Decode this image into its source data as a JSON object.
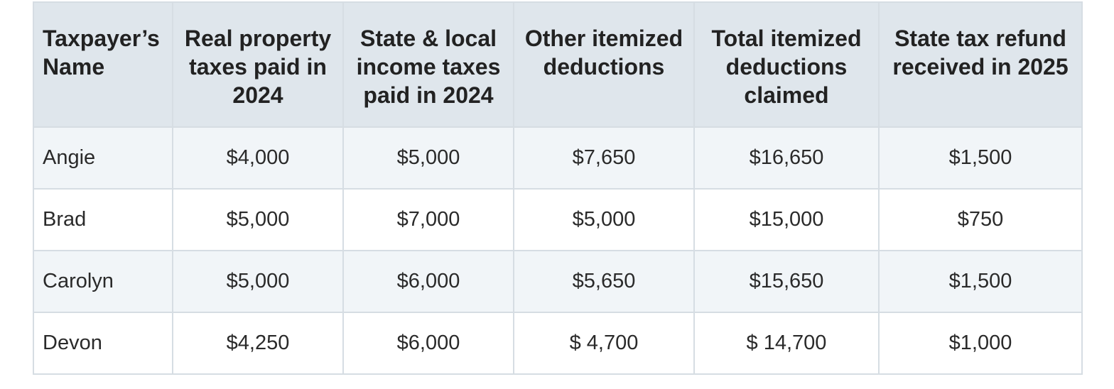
{
  "table": {
    "headers": [
      "Taxpayer’s Name",
      "Real property taxes paid in 2024",
      "State & local income taxes paid in 2024",
      "Other itemized deductions",
      "Total itemized deductions claimed",
      "State tax refund received in 2025"
    ],
    "rows": [
      [
        "Angie",
        "$4,000",
        "$5,000",
        "$7,650",
        "$16,650",
        "$1,500"
      ],
      [
        "Brad",
        "$5,000",
        "$7,000",
        "$5,000",
        "$15,000",
        "$750"
      ],
      [
        "Carolyn",
        "$5,000",
        "$6,000",
        "$5,650",
        "$15,650",
        "$1,500"
      ],
      [
        "Devon",
        "$4,250",
        "$6,000",
        "$ 4,700",
        "$ 14,700",
        "$1,000"
      ]
    ]
  },
  "colors": {
    "header_bg": "#dfe6ec",
    "row_alt_bg": "#f1f5f8",
    "border": "#d6dde3"
  }
}
